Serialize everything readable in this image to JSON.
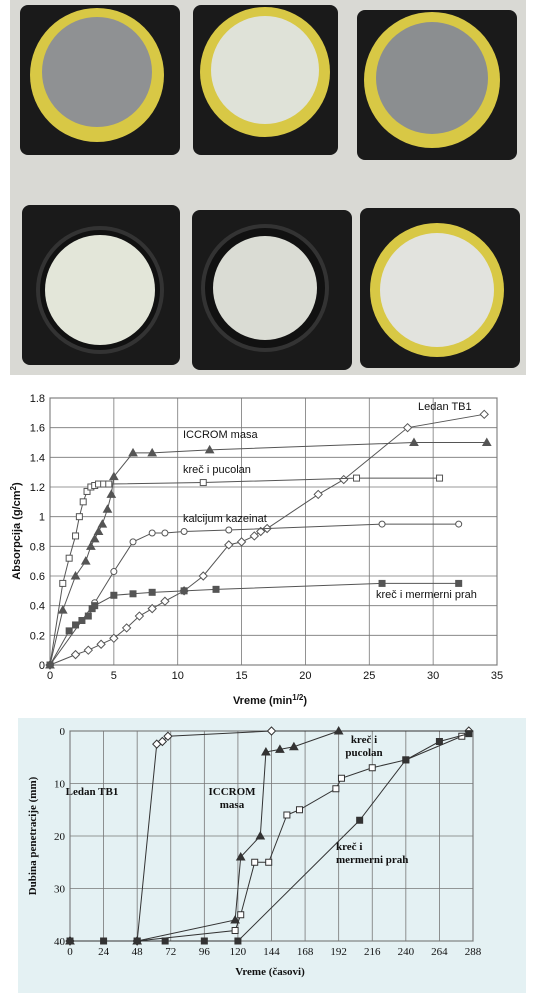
{
  "chart_data": [
    {
      "type": "line",
      "xlabel": [
        "Vreme (min",
        "1/2",
        ")"
      ],
      "ylabel": [
        "Absorpcija (g/cm",
        "2",
        ")"
      ],
      "xlim": [
        0,
        35
      ],
      "xticks": [
        0,
        5,
        10,
        15,
        20,
        25,
        30,
        35
      ],
      "ylim": [
        0,
        1.8
      ],
      "yticks": [
        0,
        0.2,
        0.4,
        0.6,
        0.8,
        1,
        1.2,
        1.4,
        1.6,
        1.8
      ],
      "grid": true,
      "series": [
        {
          "name": "Ledan TB1",
          "color": "#555555",
          "marker": "diamond",
          "filled": false,
          "x": [
            0,
            2,
            3,
            4,
            5,
            6,
            7,
            8,
            9,
            10.5,
            12,
            14,
            15,
            16,
            16.5,
            17,
            21,
            23,
            28,
            34
          ],
          "values": [
            0,
            0.07,
            0.1,
            0.14,
            0.18,
            0.25,
            0.33,
            0.38,
            0.43,
            0.5,
            0.6,
            0.81,
            0.83,
            0.87,
            0.9,
            0.92,
            1.15,
            1.25,
            1.6,
            1.69
          ]
        },
        {
          "name": "ICCROM masa",
          "color": "#555555",
          "marker": "triangle",
          "filled": true,
          "x": [
            0,
            1,
            2,
            2.8,
            3.2,
            3.5,
            3.8,
            4.1,
            4.5,
            4.8,
            5,
            6.5,
            8,
            12.5,
            28.5,
            34.2
          ],
          "values": [
            0,
            0.37,
            0.6,
            0.7,
            0.8,
            0.85,
            0.9,
            0.95,
            1.05,
            1.15,
            1.27,
            1.43,
            1.43,
            1.45,
            1.5,
            1.5
          ]
        },
        {
          "name": "kreč i pucolan",
          "color": "#555555",
          "marker": "square",
          "filled": false,
          "x": [
            0,
            1,
            1.5,
            2,
            2.3,
            2.6,
            2.9,
            3.2,
            3.5,
            3.8,
            4.2,
            4.6,
            12,
            24,
            30.5
          ],
          "values": [
            0,
            0.55,
            0.72,
            0.87,
            1,
            1.1,
            1.17,
            1.2,
            1.21,
            1.22,
            1.22,
            1.22,
            1.23,
            1.26,
            1.26
          ]
        },
        {
          "name": "kalcijum kazeinat",
          "color": "#555555",
          "marker": "circle",
          "filled": false,
          "x": [
            0,
            3.5,
            5,
            6.5,
            8,
            9,
            10.5,
            14,
            26,
            32
          ],
          "values": [
            0,
            0.42,
            0.63,
            0.83,
            0.89,
            0.89,
            0.9,
            0.91,
            0.95,
            0.95
          ]
        },
        {
          "name": "kreč i mermerni prah",
          "color": "#555555",
          "marker": "square",
          "filled": true,
          "x": [
            0,
            1.5,
            2,
            2.5,
            3,
            3.3,
            3.5,
            5,
            6.5,
            8,
            10.5,
            13,
            26,
            32
          ],
          "values": [
            0,
            0.23,
            0.27,
            0.3,
            0.33,
            0.38,
            0.4,
            0.47,
            0.48,
            0.49,
            0.5,
            0.51,
            0.55,
            0.55
          ]
        }
      ]
    },
    {
      "type": "line",
      "xlabel": [
        "Vreme (časovi)"
      ],
      "ylabel": [
        "Dubina penetracije (mm)"
      ],
      "xlim": [
        0,
        288
      ],
      "xticks": [
        0,
        24,
        48,
        72,
        96,
        120,
        144,
        168,
        192,
        216,
        240,
        264,
        288
      ],
      "ylim": [
        40,
        0
      ],
      "yticks": [
        0,
        10,
        20,
        30,
        40
      ],
      "grid": true,
      "series": [
        {
          "label": [
            "Ledan TB1"
          ],
          "color": "#333333",
          "marker": "diamond",
          "filled": false,
          "x": [
            0,
            48,
            62,
            66,
            70,
            144,
            285
          ],
          "values": [
            40,
            40,
            2.5,
            2,
            1,
            0,
            0
          ]
        },
        {
          "label": [
            "ICCROM",
            "masa"
          ],
          "color": "#333333",
          "marker": "triangle",
          "filled": true,
          "x": [
            0,
            48,
            118,
            122,
            136,
            140,
            150,
            160,
            192
          ],
          "values": [
            40,
            40,
            36,
            24,
            20,
            4,
            3.5,
            3,
            0
          ]
        },
        {
          "label": [
            "kreč i",
            "pucolan"
          ],
          "color": "#333333",
          "marker": "square",
          "filled": false,
          "x": [
            0,
            48,
            118,
            122,
            132,
            142,
            155,
            164,
            190,
            194,
            216,
            240,
            280
          ],
          "values": [
            40,
            40,
            38,
            35,
            25,
            25,
            16,
            15,
            11,
            9,
            7,
            5.5,
            1
          ]
        },
        {
          "label": [
            "kreč i",
            "mermerni prah"
          ],
          "color": "#333333",
          "marker": "square",
          "filled": true,
          "x": [
            0,
            24,
            48,
            68,
            96,
            120,
            207,
            240,
            264,
            285
          ],
          "values": [
            40,
            40,
            40,
            40,
            40,
            40,
            17,
            5.5,
            2,
            0.5
          ]
        }
      ]
    }
  ]
}
